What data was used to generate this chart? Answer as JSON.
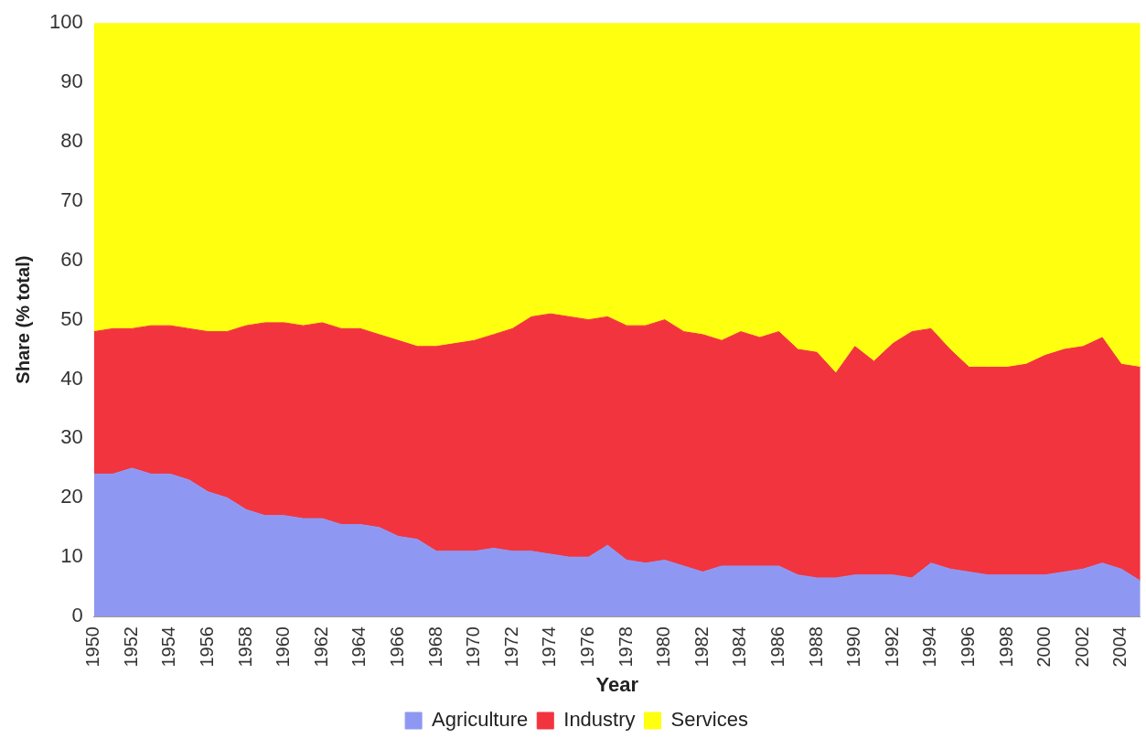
{
  "chart_data": {
    "type": "area",
    "stacked": true,
    "xlabel": "Year",
    "ylabel": "Share (% total)",
    "x": [
      1950,
      1951,
      1952,
      1953,
      1954,
      1955,
      1956,
      1957,
      1958,
      1959,
      1960,
      1961,
      1962,
      1963,
      1964,
      1965,
      1966,
      1967,
      1968,
      1969,
      1970,
      1971,
      1972,
      1973,
      1974,
      1975,
      1976,
      1977,
      1978,
      1979,
      1980,
      1981,
      1982,
      1983,
      1984,
      1985,
      1986,
      1987,
      1988,
      1989,
      1990,
      1991,
      1992,
      1993,
      1994,
      1995,
      1996,
      1997,
      1998,
      1999,
      2000,
      2001,
      2002,
      2003,
      2004,
      2005
    ],
    "series": [
      {
        "name": "Agriculture",
        "color": "#8e98f2",
        "values": [
          24,
          24,
          25,
          24,
          24,
          23,
          21,
          20,
          18,
          17,
          17,
          16.5,
          16.5,
          15.5,
          15.5,
          15,
          13.5,
          13,
          11,
          11,
          11,
          11.5,
          11,
          11,
          10.5,
          10,
          10,
          12,
          9.5,
          9,
          9.5,
          8.5,
          7.5,
          8.5,
          8.5,
          8.5,
          8.5,
          7,
          6.5,
          6.5,
          7,
          7,
          7,
          6.5,
          9,
          8,
          7.5,
          7,
          7,
          7,
          7,
          7.5,
          8,
          9,
          8,
          6
        ]
      },
      {
        "name": "Industry",
        "color": "#f2343f",
        "values": [
          24,
          24.5,
          23.5,
          25,
          25,
          25.5,
          27,
          28,
          31,
          32.5,
          32.5,
          32.5,
          33,
          33,
          33,
          32.5,
          33,
          32.5,
          34.5,
          35,
          35.5,
          36,
          37.5,
          39.5,
          40.5,
          40.5,
          40,
          38.5,
          39.5,
          40,
          40.5,
          39.5,
          40,
          38,
          39.5,
          38.5,
          39.5,
          38,
          38,
          34.5,
          38.5,
          36,
          39,
          41.5,
          39.5,
          37,
          34.5,
          35,
          35,
          35.5,
          37,
          37.5,
          37.5,
          38,
          34.5,
          36
        ]
      },
      {
        "name": "Services",
        "color": "#ffff10",
        "values": [
          52,
          51.5,
          51.5,
          51,
          51,
          51.5,
          52,
          52,
          51,
          50.5,
          50.5,
          51,
          50.5,
          51.5,
          51.5,
          52.5,
          53.5,
          54.5,
          54.5,
          54,
          53.5,
          52.5,
          51.5,
          49.5,
          49,
          49.5,
          50,
          49.5,
          51,
          51,
          50,
          52,
          52.5,
          53.5,
          52,
          53,
          52,
          55,
          55.5,
          59,
          54.5,
          57,
          54,
          52,
          51.5,
          55,
          58,
          58,
          58,
          57.5,
          56,
          55,
          54.5,
          53,
          57.5,
          58
        ]
      }
    ],
    "xlim": [
      1950,
      2005
    ],
    "xticks": [
      1950,
      1952,
      1954,
      1956,
      1958,
      1960,
      1962,
      1964,
      1966,
      1968,
      1970,
      1972,
      1974,
      1976,
      1978,
      1980,
      1982,
      1984,
      1986,
      1988,
      1990,
      1992,
      1994,
      1996,
      1998,
      2000,
      2002,
      2004
    ],
    "ylim": [
      0,
      100
    ],
    "yticks": [
      0,
      10,
      20,
      30,
      40,
      50,
      60,
      70,
      80,
      90,
      100
    ],
    "grid": false,
    "legend": "bottom"
  }
}
